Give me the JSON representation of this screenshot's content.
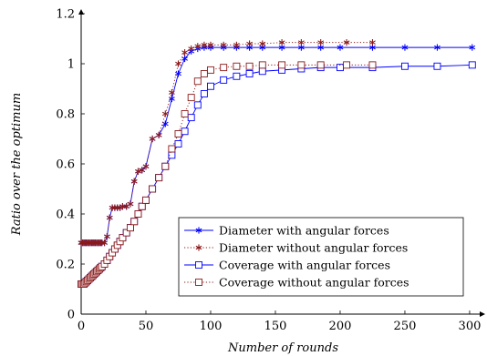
{
  "chart_data": {
    "type": "line",
    "title": "",
    "xlabel": "Number of rounds",
    "ylabel": "Ratio over the optimum",
    "xlim": [
      0,
      312
    ],
    "ylim": [
      0,
      1.2
    ],
    "xticks": [
      0,
      50,
      100,
      150,
      200,
      250,
      300
    ],
    "yticks": [
      0,
      0.2,
      0.4,
      0.6,
      0.8,
      1,
      1.2
    ],
    "ytick_labels": [
      "0",
      "0.2",
      "0.4",
      "0.6",
      "0.8",
      "1",
      "1.2"
    ],
    "grid": false,
    "legend_position": "bottom-right",
    "series": [
      {
        "name": "Diameter with angular forces",
        "color": "#0000ff",
        "line_style": "solid",
        "marker": "asterisk",
        "x": [
          0,
          1,
          2,
          3,
          4,
          5,
          6,
          7,
          8,
          9,
          10,
          11,
          12,
          13,
          14,
          15,
          16,
          18,
          20,
          22,
          24,
          26,
          28,
          30,
          32,
          35,
          38,
          41,
          44,
          47,
          50,
          55,
          60,
          65,
          70,
          75,
          80,
          85,
          90,
          95,
          100,
          110,
          120,
          130,
          140,
          155,
          170,
          185,
          200,
          225,
          250,
          275,
          302
        ],
        "y": [
          0.285,
          0.285,
          0.285,
          0.285,
          0.285,
          0.285,
          0.285,
          0.285,
          0.285,
          0.285,
          0.285,
          0.285,
          0.285,
          0.285,
          0.285,
          0.285,
          0.285,
          0.285,
          0.31,
          0.385,
          0.425,
          0.425,
          0.425,
          0.425,
          0.43,
          0.43,
          0.44,
          0.53,
          0.57,
          0.575,
          0.59,
          0.7,
          0.715,
          0.76,
          0.86,
          0.96,
          1.02,
          1.05,
          1.06,
          1.065,
          1.065,
          1.065,
          1.065,
          1.065,
          1.065,
          1.065,
          1.065,
          1.065,
          1.065,
          1.065,
          1.065,
          1.065,
          1.065
        ]
      },
      {
        "name": "Diameter without angular forces",
        "color": "#8b1a1a",
        "line_style": "dotted",
        "marker": "asterisk",
        "x": [
          0,
          1,
          2,
          3,
          4,
          5,
          6,
          7,
          8,
          9,
          10,
          11,
          12,
          13,
          14,
          15,
          16,
          18,
          20,
          22,
          24,
          26,
          28,
          30,
          32,
          35,
          38,
          41,
          44,
          47,
          50,
          55,
          60,
          65,
          70,
          75,
          80,
          85,
          90,
          95,
          100,
          110,
          120,
          130,
          140,
          155,
          170,
          185,
          205,
          225
        ],
        "y": [
          0.285,
          0.285,
          0.285,
          0.285,
          0.285,
          0.285,
          0.285,
          0.285,
          0.285,
          0.285,
          0.285,
          0.285,
          0.285,
          0.285,
          0.285,
          0.285,
          0.285,
          0.285,
          0.31,
          0.385,
          0.425,
          0.425,
          0.425,
          0.425,
          0.43,
          0.43,
          0.44,
          0.53,
          0.57,
          0.575,
          0.59,
          0.7,
          0.715,
          0.8,
          0.885,
          1.0,
          1.045,
          1.06,
          1.07,
          1.075,
          1.075,
          1.075,
          1.075,
          1.08,
          1.08,
          1.085,
          1.085,
          1.085,
          1.085,
          1.085
        ]
      },
      {
        "name": "Coverage with angular forces",
        "color": "#0000ff",
        "line_style": "solid",
        "marker": "square",
        "x": [
          0,
          1,
          2,
          3,
          4,
          5,
          6,
          7,
          8,
          9,
          10,
          11,
          12,
          13,
          14,
          15,
          16,
          18,
          20,
          22,
          24,
          26,
          28,
          30,
          32,
          35,
          38,
          41,
          44,
          47,
          50,
          55,
          60,
          65,
          70,
          75,
          80,
          85,
          90,
          95,
          100,
          110,
          120,
          130,
          140,
          155,
          170,
          185,
          200,
          225,
          250,
          275,
          302
        ],
        "y": [
          0.12,
          0.12,
          0.12,
          0.125,
          0.13,
          0.135,
          0.14,
          0.145,
          0.15,
          0.155,
          0.16,
          0.165,
          0.17,
          0.175,
          0.18,
          0.185,
          0.19,
          0.2,
          0.215,
          0.23,
          0.245,
          0.26,
          0.275,
          0.29,
          0.305,
          0.325,
          0.345,
          0.37,
          0.4,
          0.43,
          0.455,
          0.5,
          0.545,
          0.59,
          0.635,
          0.68,
          0.73,
          0.785,
          0.835,
          0.88,
          0.91,
          0.935,
          0.95,
          0.96,
          0.97,
          0.975,
          0.98,
          0.985,
          0.985,
          0.985,
          0.99,
          0.99,
          0.995
        ]
      },
      {
        "name": "Coverage without angular forces",
        "color": "#8b1a1a",
        "line_style": "dotted",
        "marker": "square",
        "x": [
          0,
          1,
          2,
          3,
          4,
          5,
          6,
          7,
          8,
          9,
          10,
          11,
          12,
          13,
          14,
          15,
          16,
          18,
          20,
          22,
          24,
          26,
          28,
          30,
          32,
          35,
          38,
          41,
          44,
          47,
          50,
          55,
          60,
          65,
          70,
          75,
          80,
          85,
          90,
          95,
          100,
          110,
          120,
          130,
          140,
          155,
          170,
          185,
          205,
          225
        ],
        "y": [
          0.12,
          0.12,
          0.12,
          0.125,
          0.13,
          0.135,
          0.14,
          0.145,
          0.15,
          0.155,
          0.16,
          0.165,
          0.17,
          0.175,
          0.18,
          0.185,
          0.19,
          0.2,
          0.215,
          0.23,
          0.245,
          0.26,
          0.275,
          0.29,
          0.305,
          0.325,
          0.345,
          0.37,
          0.4,
          0.43,
          0.455,
          0.5,
          0.545,
          0.59,
          0.66,
          0.72,
          0.8,
          0.865,
          0.93,
          0.96,
          0.975,
          0.985,
          0.99,
          0.99,
          0.995,
          0.995,
          0.995,
          0.995,
          0.995,
          0.995
        ]
      }
    ]
  }
}
